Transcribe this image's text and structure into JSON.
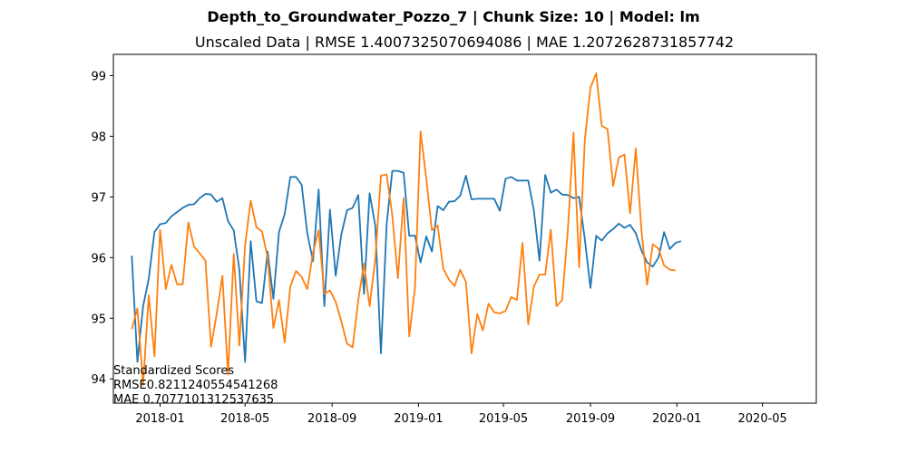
{
  "chart_data": {
    "type": "line",
    "title": "Depth_to_Groundwater_Pozzo_7 | Chunk Size: 10 | Model: lm",
    "subtitle": "Unscaled Data | RMSE 1.4007325070694086 | MAE 1.2072628731857742",
    "xlabel": "",
    "ylabel": "",
    "x_tick_labels": [
      "2018-01",
      "2018-05",
      "2018-09",
      "2019-01",
      "2019-05",
      "2019-09",
      "2020-01",
      "2020-05"
    ],
    "x_tick_dates": [
      "2018-01-01",
      "2018-05-01",
      "2018-09-01",
      "2019-01-01",
      "2019-05-01",
      "2019-09-01",
      "2020-01-01",
      "2020-05-01"
    ],
    "y_ticks": [
      94,
      95,
      96,
      97,
      98,
      99
    ],
    "xlim": [
      "2017-10-27",
      "2020-07-16"
    ],
    "ylim": [
      93.6,
      99.35
    ],
    "grid": false,
    "legend": null,
    "annotation": [
      "Standardized Scores",
      "RMSE0.8211240554541268",
      "MAE 0.7077101312537635"
    ],
    "series": [
      {
        "color": "#1f77b4",
        "points": [
          [
            "2017-11-22",
            96.03
          ],
          [
            "2017-11-30",
            94.28
          ],
          [
            "2017-12-08",
            95.2
          ],
          [
            "2017-12-16",
            95.65
          ],
          [
            "2017-12-24",
            96.42
          ],
          [
            "2018-01-01",
            96.55
          ],
          [
            "2018-01-09",
            96.57
          ],
          [
            "2018-01-17",
            96.68
          ],
          [
            "2018-01-25",
            96.75
          ],
          [
            "2018-02-02",
            96.82
          ],
          [
            "2018-02-10",
            96.87
          ],
          [
            "2018-02-18",
            96.88
          ],
          [
            "2018-02-26",
            96.98
          ],
          [
            "2018-03-06",
            97.05
          ],
          [
            "2018-03-14",
            97.04
          ],
          [
            "2018-03-22",
            96.92
          ],
          [
            "2018-03-30",
            96.98
          ],
          [
            "2018-04-07",
            96.6
          ],
          [
            "2018-04-15",
            96.45
          ],
          [
            "2018-04-23",
            95.8
          ],
          [
            "2018-05-01",
            94.28
          ],
          [
            "2018-05-09",
            96.27
          ],
          [
            "2018-05-17",
            95.28
          ],
          [
            "2018-05-25",
            95.25
          ],
          [
            "2018-06-02",
            96.1
          ],
          [
            "2018-06-10",
            95.32
          ],
          [
            "2018-06-18",
            96.42
          ],
          [
            "2018-06-26",
            96.72
          ],
          [
            "2018-07-04",
            97.33
          ],
          [
            "2018-07-12",
            97.33
          ],
          [
            "2018-07-20",
            97.2
          ],
          [
            "2018-07-28",
            96.4
          ],
          [
            "2018-08-05",
            95.94
          ],
          [
            "2018-08-13",
            97.12
          ],
          [
            "2018-08-21",
            95.2
          ],
          [
            "2018-08-29",
            96.79
          ],
          [
            "2018-09-06",
            95.7
          ],
          [
            "2018-09-14",
            96.38
          ],
          [
            "2018-09-22",
            96.78
          ],
          [
            "2018-09-30",
            96.82
          ],
          [
            "2018-10-08",
            97.03
          ],
          [
            "2018-10-16",
            95.4
          ],
          [
            "2018-10-24",
            97.06
          ],
          [
            "2018-11-01",
            96.52
          ],
          [
            "2018-11-09",
            94.42
          ],
          [
            "2018-11-17",
            96.55
          ],
          [
            "2018-11-25",
            97.43
          ],
          [
            "2018-12-03",
            97.43
          ],
          [
            "2018-12-11",
            97.4
          ],
          [
            "2018-12-19",
            96.36
          ],
          [
            "2018-12-27",
            96.36
          ],
          [
            "2019-01-04",
            95.92
          ],
          [
            "2019-01-12",
            96.35
          ],
          [
            "2019-01-20",
            96.1
          ],
          [
            "2019-01-28",
            96.85
          ],
          [
            "2019-02-05",
            96.78
          ],
          [
            "2019-02-13",
            96.92
          ],
          [
            "2019-02-21",
            96.93
          ],
          [
            "2019-03-01",
            97.02
          ],
          [
            "2019-03-09",
            97.35
          ],
          [
            "2019-03-17",
            96.96
          ],
          [
            "2019-03-25",
            96.97
          ],
          [
            "2019-04-02",
            96.97
          ],
          [
            "2019-04-10",
            96.97
          ],
          [
            "2019-04-18",
            96.97
          ],
          [
            "2019-04-26",
            96.77
          ],
          [
            "2019-05-04",
            97.3
          ],
          [
            "2019-05-12",
            97.33
          ],
          [
            "2019-05-20",
            97.27
          ],
          [
            "2019-05-28",
            97.27
          ],
          [
            "2019-06-05",
            97.27
          ],
          [
            "2019-06-13",
            96.78
          ],
          [
            "2019-06-21",
            95.95
          ],
          [
            "2019-06-29",
            97.36
          ],
          [
            "2019-07-07",
            97.07
          ],
          [
            "2019-07-15",
            97.12
          ],
          [
            "2019-07-23",
            97.04
          ],
          [
            "2019-07-31",
            97.03
          ],
          [
            "2019-08-08",
            96.98
          ],
          [
            "2019-08-16",
            97.0
          ],
          [
            "2019-08-24",
            96.3
          ],
          [
            "2019-09-01",
            95.5
          ],
          [
            "2019-09-09",
            96.36
          ],
          [
            "2019-09-17",
            96.28
          ],
          [
            "2019-09-25",
            96.4
          ],
          [
            "2019-10-03",
            96.47
          ],
          [
            "2019-10-11",
            96.56
          ],
          [
            "2019-10-19",
            96.49
          ],
          [
            "2019-10-27",
            96.54
          ],
          [
            "2019-11-04",
            96.4
          ],
          [
            "2019-11-12",
            96.12
          ],
          [
            "2019-11-20",
            95.92
          ],
          [
            "2019-11-28",
            95.85
          ],
          [
            "2019-12-06",
            96.0
          ],
          [
            "2019-12-14",
            96.42
          ],
          [
            "2019-12-22",
            96.14
          ],
          [
            "2019-12-30",
            96.24
          ],
          [
            "2020-01-07",
            96.27
          ]
        ]
      },
      {
        "color": "#ff7f0e",
        "points": [
          [
            "2017-11-22",
            94.82
          ],
          [
            "2017-11-30",
            95.16
          ],
          [
            "2017-12-08",
            93.9
          ],
          [
            "2017-12-16",
            95.38
          ],
          [
            "2017-12-24",
            94.37
          ],
          [
            "2018-01-01",
            96.46
          ],
          [
            "2018-01-09",
            95.48
          ],
          [
            "2018-01-17",
            95.88
          ],
          [
            "2018-01-25",
            95.56
          ],
          [
            "2018-02-02",
            95.56
          ],
          [
            "2018-02-10",
            96.58
          ],
          [
            "2018-02-18",
            96.18
          ],
          [
            "2018-02-26",
            96.07
          ],
          [
            "2018-03-06",
            95.95
          ],
          [
            "2018-03-14",
            94.53
          ],
          [
            "2018-03-22",
            95.07
          ],
          [
            "2018-03-30",
            95.7
          ],
          [
            "2018-04-07",
            94.07
          ],
          [
            "2018-04-15",
            96.06
          ],
          [
            "2018-04-23",
            94.55
          ],
          [
            "2018-05-01",
            96.2
          ],
          [
            "2018-05-09",
            96.94
          ],
          [
            "2018-05-17",
            96.5
          ],
          [
            "2018-05-25",
            96.43
          ],
          [
            "2018-06-02",
            96.0
          ],
          [
            "2018-06-10",
            94.84
          ],
          [
            "2018-06-18",
            95.3
          ],
          [
            "2018-06-26",
            94.6
          ],
          [
            "2018-07-04",
            95.52
          ],
          [
            "2018-07-12",
            95.78
          ],
          [
            "2018-07-20",
            95.68
          ],
          [
            "2018-07-28",
            95.48
          ],
          [
            "2018-08-05",
            96.08
          ],
          [
            "2018-08-13",
            96.45
          ],
          [
            "2018-08-21",
            95.4
          ],
          [
            "2018-08-29",
            95.46
          ],
          [
            "2018-09-06",
            95.27
          ],
          [
            "2018-09-14",
            94.95
          ],
          [
            "2018-09-22",
            94.58
          ],
          [
            "2018-09-30",
            94.52
          ],
          [
            "2018-10-08",
            95.3
          ],
          [
            "2018-10-16",
            95.9
          ],
          [
            "2018-10-24",
            95.2
          ],
          [
            "2018-11-01",
            95.98
          ],
          [
            "2018-11-09",
            97.35
          ],
          [
            "2018-11-17",
            97.37
          ],
          [
            "2018-11-25",
            96.7
          ],
          [
            "2018-12-03",
            95.66
          ],
          [
            "2018-12-11",
            96.98
          ],
          [
            "2018-12-19",
            94.7
          ],
          [
            "2018-12-27",
            95.5
          ],
          [
            "2019-01-04",
            98.08
          ],
          [
            "2019-01-12",
            97.3
          ],
          [
            "2019-01-20",
            96.45
          ],
          [
            "2019-01-28",
            96.53
          ],
          [
            "2019-02-05",
            95.82
          ],
          [
            "2019-02-13",
            95.64
          ],
          [
            "2019-02-21",
            95.53
          ],
          [
            "2019-03-01",
            95.8
          ],
          [
            "2019-03-09",
            95.6
          ],
          [
            "2019-03-17",
            94.42
          ],
          [
            "2019-03-25",
            95.07
          ],
          [
            "2019-04-02",
            94.8
          ],
          [
            "2019-04-10",
            95.24
          ],
          [
            "2019-04-18",
            95.1
          ],
          [
            "2019-04-26",
            95.08
          ],
          [
            "2019-05-04",
            95.12
          ],
          [
            "2019-05-12",
            95.35
          ],
          [
            "2019-05-20",
            95.3
          ],
          [
            "2019-05-28",
            96.24
          ],
          [
            "2019-06-05",
            94.9
          ],
          [
            "2019-06-13",
            95.52
          ],
          [
            "2019-06-21",
            95.72
          ],
          [
            "2019-06-29",
            95.72
          ],
          [
            "2019-07-07",
            96.46
          ],
          [
            "2019-07-15",
            95.2
          ],
          [
            "2019-07-23",
            95.3
          ],
          [
            "2019-07-31",
            96.46
          ],
          [
            "2019-08-08",
            98.06
          ],
          [
            "2019-08-16",
            95.84
          ],
          [
            "2019-08-24",
            97.94
          ],
          [
            "2019-09-01",
            98.8
          ],
          [
            "2019-09-09",
            99.04
          ],
          [
            "2019-09-17",
            98.17
          ],
          [
            "2019-09-25",
            98.12
          ],
          [
            "2019-10-03",
            97.18
          ],
          [
            "2019-10-11",
            97.65
          ],
          [
            "2019-10-19",
            97.7
          ],
          [
            "2019-10-27",
            96.73
          ],
          [
            "2019-11-04",
            97.8
          ],
          [
            "2019-11-12",
            96.45
          ],
          [
            "2019-11-20",
            95.55
          ],
          [
            "2019-11-28",
            96.22
          ],
          [
            "2019-12-06",
            96.15
          ],
          [
            "2019-12-14",
            95.87
          ],
          [
            "2019-12-22",
            95.8
          ],
          [
            "2019-12-30",
            95.79
          ]
        ]
      }
    ]
  }
}
